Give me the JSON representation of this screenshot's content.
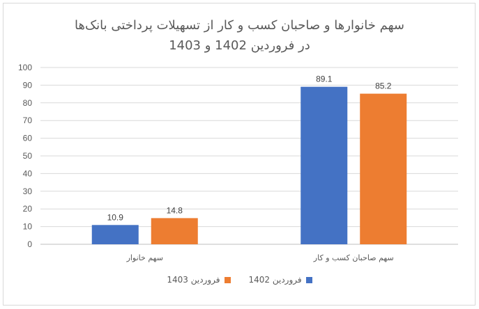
{
  "chart_data": {
    "type": "bar",
    "title": "سهم خانوارها و صاحبان کسب و کار از تسهیلات پرداختی بانک‌ها",
    "subtitle": "در فروردین 1402 و 1403",
    "categories": [
      "سهم خانوار",
      "سهم صاحبان کسب و کار"
    ],
    "series": [
      {
        "name": "فروردین 1402",
        "values": [
          10.9,
          89.1
        ],
        "color": "#4472c4"
      },
      {
        "name": "فروردین 1403",
        "values": [
          14.8,
          85.2
        ],
        "color": "#ed7d31"
      }
    ],
    "ylim": [
      0,
      100
    ],
    "yticks": [
      0,
      10,
      20,
      30,
      40,
      50,
      60,
      70,
      80,
      90,
      100
    ],
    "grid": true,
    "legend_position": "bottom"
  }
}
